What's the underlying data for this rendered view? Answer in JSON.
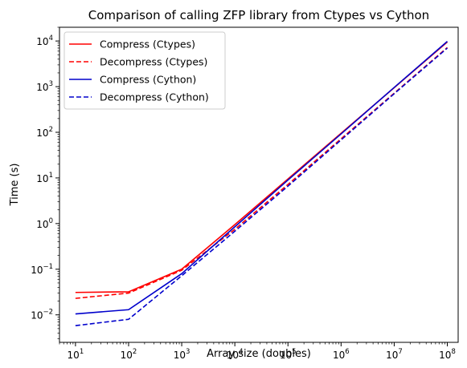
{
  "chart_data": {
    "type": "line",
    "title": "Comparison of calling ZFP library from Ctypes vs Cython",
    "xlabel": "Array size (doubles)",
    "ylabel": "Time (s)",
    "xscale": "log",
    "yscale": "log",
    "xlim": [
      5,
      160000000
    ],
    "ylim": [
      0.0025,
      20000
    ],
    "grid": false,
    "legend_position": "top-left",
    "x_ticks": [
      {
        "base": "10",
        "exp": "1",
        "value": 10
      },
      {
        "base": "10",
        "exp": "2",
        "value": 100
      },
      {
        "base": "10",
        "exp": "3",
        "value": 1000
      },
      {
        "base": "10",
        "exp": "4",
        "value": 10000
      },
      {
        "base": "10",
        "exp": "5",
        "value": 100000
      },
      {
        "base": "10",
        "exp": "6",
        "value": 1000000
      },
      {
        "base": "10",
        "exp": "7",
        "value": 10000000
      },
      {
        "base": "10",
        "exp": "8",
        "value": 100000000
      }
    ],
    "y_ticks": [
      {
        "base": "10",
        "exp": "−2",
        "value": 0.01
      },
      {
        "base": "10",
        "exp": "−1",
        "value": 0.1
      },
      {
        "base": "10",
        "exp": "0",
        "value": 1
      },
      {
        "base": "10",
        "exp": "1",
        "value": 10
      },
      {
        "base": "10",
        "exp": "2",
        "value": 100
      },
      {
        "base": "10",
        "exp": "3",
        "value": 1000
      },
      {
        "base": "10",
        "exp": "4",
        "value": 10000
      }
    ],
    "x": [
      10,
      100,
      1000,
      10000,
      100000,
      1000000,
      10000000,
      100000000
    ],
    "series": [
      {
        "name": "Compress (Ctypes)",
        "color": "#ff0000",
        "dash": "solid",
        "values": [
          0.031,
          0.032,
          0.1,
          0.95,
          9.5,
          95,
          950,
          9500
        ]
      },
      {
        "name": "Decompress (Ctypes)",
        "color": "#ff0000",
        "dash": "dashed",
        "values": [
          0.023,
          0.03,
          0.095,
          0.75,
          7.2,
          72,
          720,
          7200
        ]
      },
      {
        "name": "Compress (Cython)",
        "color": "#0000cc",
        "dash": "solid",
        "values": [
          0.0105,
          0.013,
          0.08,
          0.85,
          9.0,
          92,
          960,
          9800
        ]
      },
      {
        "name": "Decompress (Cython)",
        "color": "#0000cc",
        "dash": "dashed",
        "values": [
          0.0058,
          0.008,
          0.072,
          0.68,
          6.6,
          68,
          700,
          7000
        ]
      }
    ]
  }
}
